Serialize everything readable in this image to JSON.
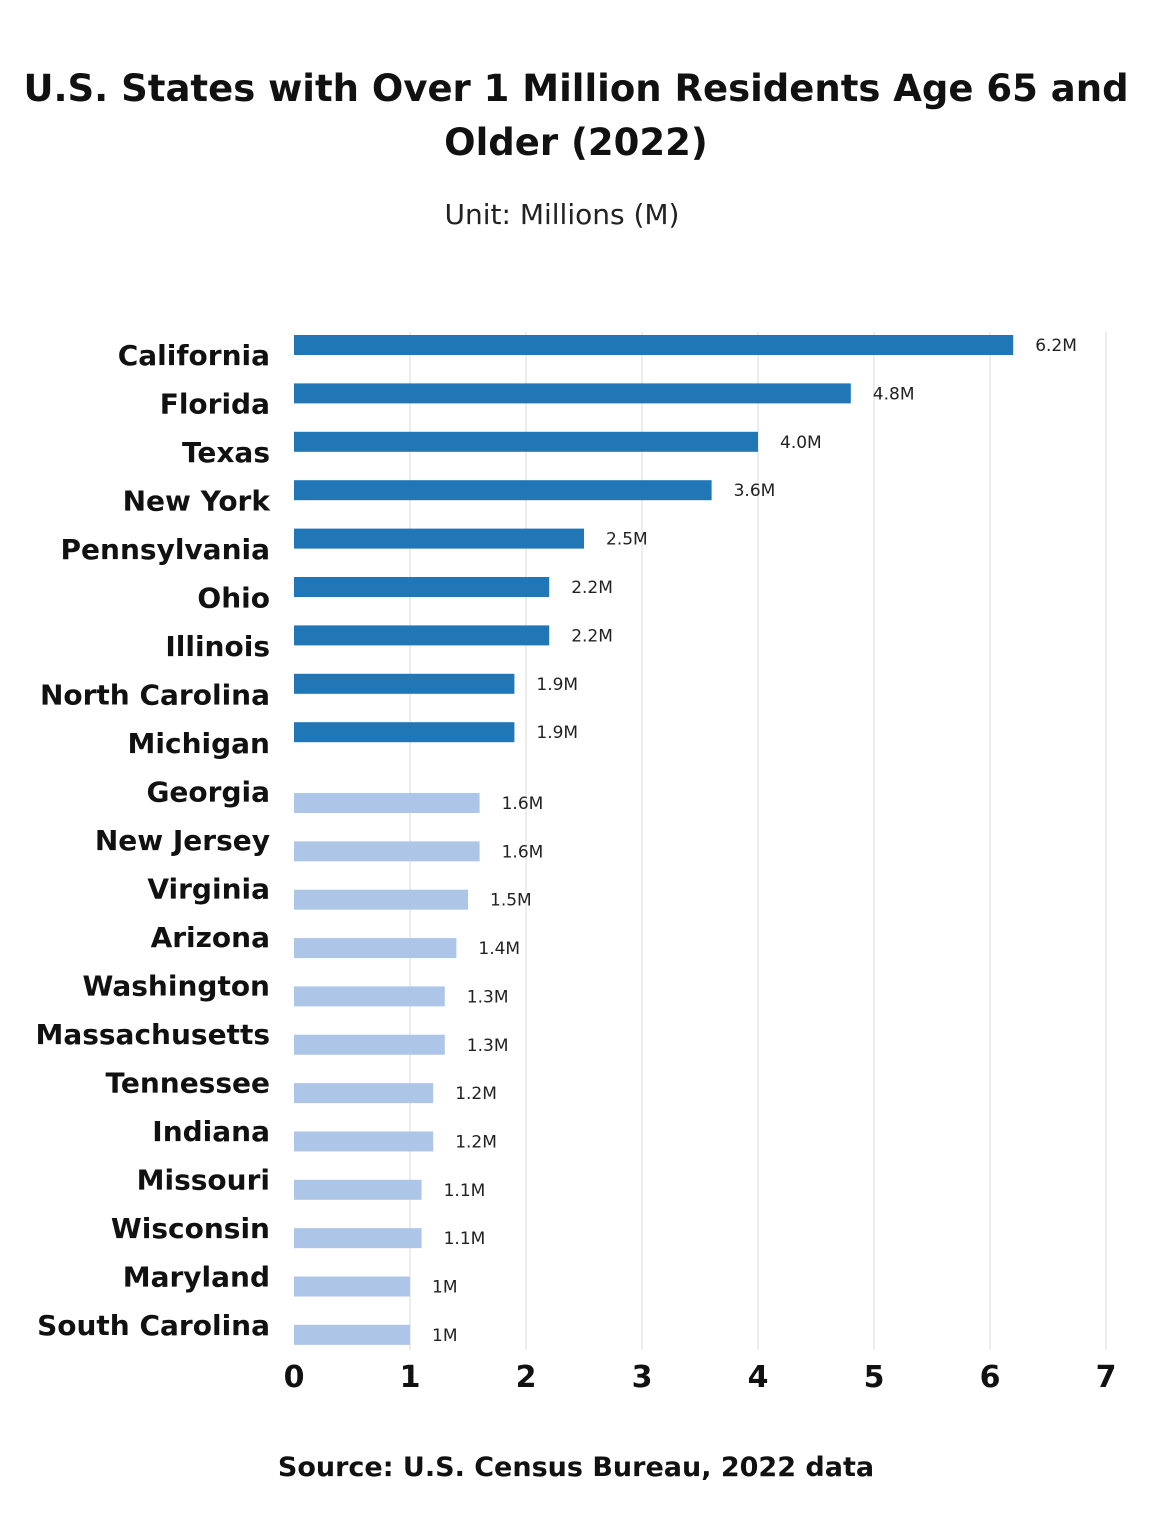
{
  "title": "U.S. States with Over 1 Million Residents Age 65 and Older (2022)",
  "subtitle": "Unit: Millions (M)",
  "source": "Source: U.S. Census Bureau, 2022 data",
  "colors": {
    "dark_bar": "#2176b5",
    "light_bar": "#adc6e8",
    "grid": "#d9d9d9"
  },
  "chart_data": {
    "type": "bar",
    "orientation": "horizontal",
    "categories": [
      "California",
      "Florida",
      "Texas",
      "New York",
      "Pennsylvania",
      "Ohio",
      "Illinois",
      "North Carolina",
      "Michigan",
      "Georgia",
      "New Jersey",
      "Virginia",
      "Arizona",
      "Washington",
      "Massachusetts",
      "Tennessee",
      "Indiana",
      "Missouri",
      "Wisconsin",
      "Maryland",
      "South Carolina"
    ],
    "values": [
      6.2,
      4.8,
      4.0,
      3.6,
      2.5,
      2.2,
      2.2,
      1.9,
      1.9,
      1.6,
      1.6,
      1.5,
      1.4,
      1.3,
      1.3,
      1.2,
      1.2,
      1.1,
      1.1,
      1.0,
      1.0
    ],
    "value_labels": [
      "6.2M",
      "4.8M",
      "4.0M",
      "3.6M",
      "2.5M",
      "2.2M",
      "2.2M",
      "1.9M",
      "1.9M",
      "1.6M",
      "1.6M",
      "1.5M",
      "1.4M",
      "1.3M",
      "1.3M",
      "1.2M",
      "1.2M",
      "1.1M",
      "1.1M",
      "1M",
      "1M"
    ],
    "bar_color_group": [
      "dark",
      "dark",
      "dark",
      "dark",
      "dark",
      "dark",
      "dark",
      "dark",
      "dark",
      "light",
      "light",
      "light",
      "light",
      "light",
      "light",
      "light",
      "light",
      "light",
      "light",
      "light",
      "light"
    ],
    "x_ticks": [
      "0",
      "1",
      "2",
      "3",
      "4",
      "5",
      "6",
      "7"
    ],
    "xlim": [
      0,
      7
    ],
    "grid": true,
    "legend": "none"
  }
}
